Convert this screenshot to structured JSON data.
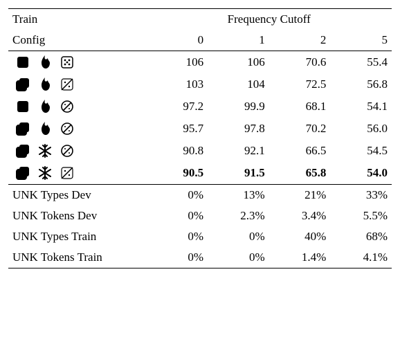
{
  "header": {
    "train": "Train",
    "config": "Config",
    "freq": "Frequency Cutoff",
    "cols": [
      "0",
      "1",
      "2",
      "5"
    ]
  },
  "rows": [
    {
      "icons": [
        "square-solid",
        "fire-solid",
        "dice-outline"
      ],
      "vals": [
        "106",
        "106",
        "70.6",
        "55.4"
      ],
      "bold": false
    },
    {
      "icons": [
        "stack-solid",
        "fire-solid",
        "dice-slash"
      ],
      "vals": [
        "103",
        "104",
        "72.5",
        "56.8"
      ],
      "bold": false
    },
    {
      "icons": [
        "square-solid",
        "fire-solid",
        "nodice-outline"
      ],
      "vals": [
        "97.2",
        "99.9",
        "68.1",
        "54.1"
      ],
      "bold": false
    },
    {
      "icons": [
        "stack-solid",
        "fire-solid",
        "nodice-outline"
      ],
      "vals": [
        "95.7",
        "97.8",
        "70.2",
        "56.0"
      ],
      "bold": false
    },
    {
      "icons": [
        "stack-solid",
        "snow-solid",
        "nodice-outline"
      ],
      "vals": [
        "90.8",
        "92.1",
        "66.5",
        "54.5"
      ],
      "bold": false
    },
    {
      "icons": [
        "stack-solid",
        "snow-solid",
        "dice-slash"
      ],
      "vals": [
        "90.5",
        "91.5",
        "65.8",
        "54.0"
      ],
      "bold": true
    }
  ],
  "unk": [
    {
      "label": "UNK Types Dev",
      "vals": [
        "0%",
        "13%",
        "21%",
        "33%"
      ]
    },
    {
      "label": "UNK Tokens Dev",
      "vals": [
        "0%",
        "2.3%",
        "3.4%",
        "5.5%"
      ]
    },
    {
      "label": "UNK Types Train",
      "vals": [
        "0%",
        "0%",
        "40%",
        "68%"
      ]
    },
    {
      "label": "UNK Tokens Train",
      "vals": [
        "0%",
        "0%",
        "1.4%",
        "4.1%"
      ]
    }
  ],
  "style": {
    "col_widths": [
      "36%",
      "16%",
      "16%",
      "16%",
      "16%"
    ],
    "font_size": 17,
    "bold_row_index": 5
  }
}
